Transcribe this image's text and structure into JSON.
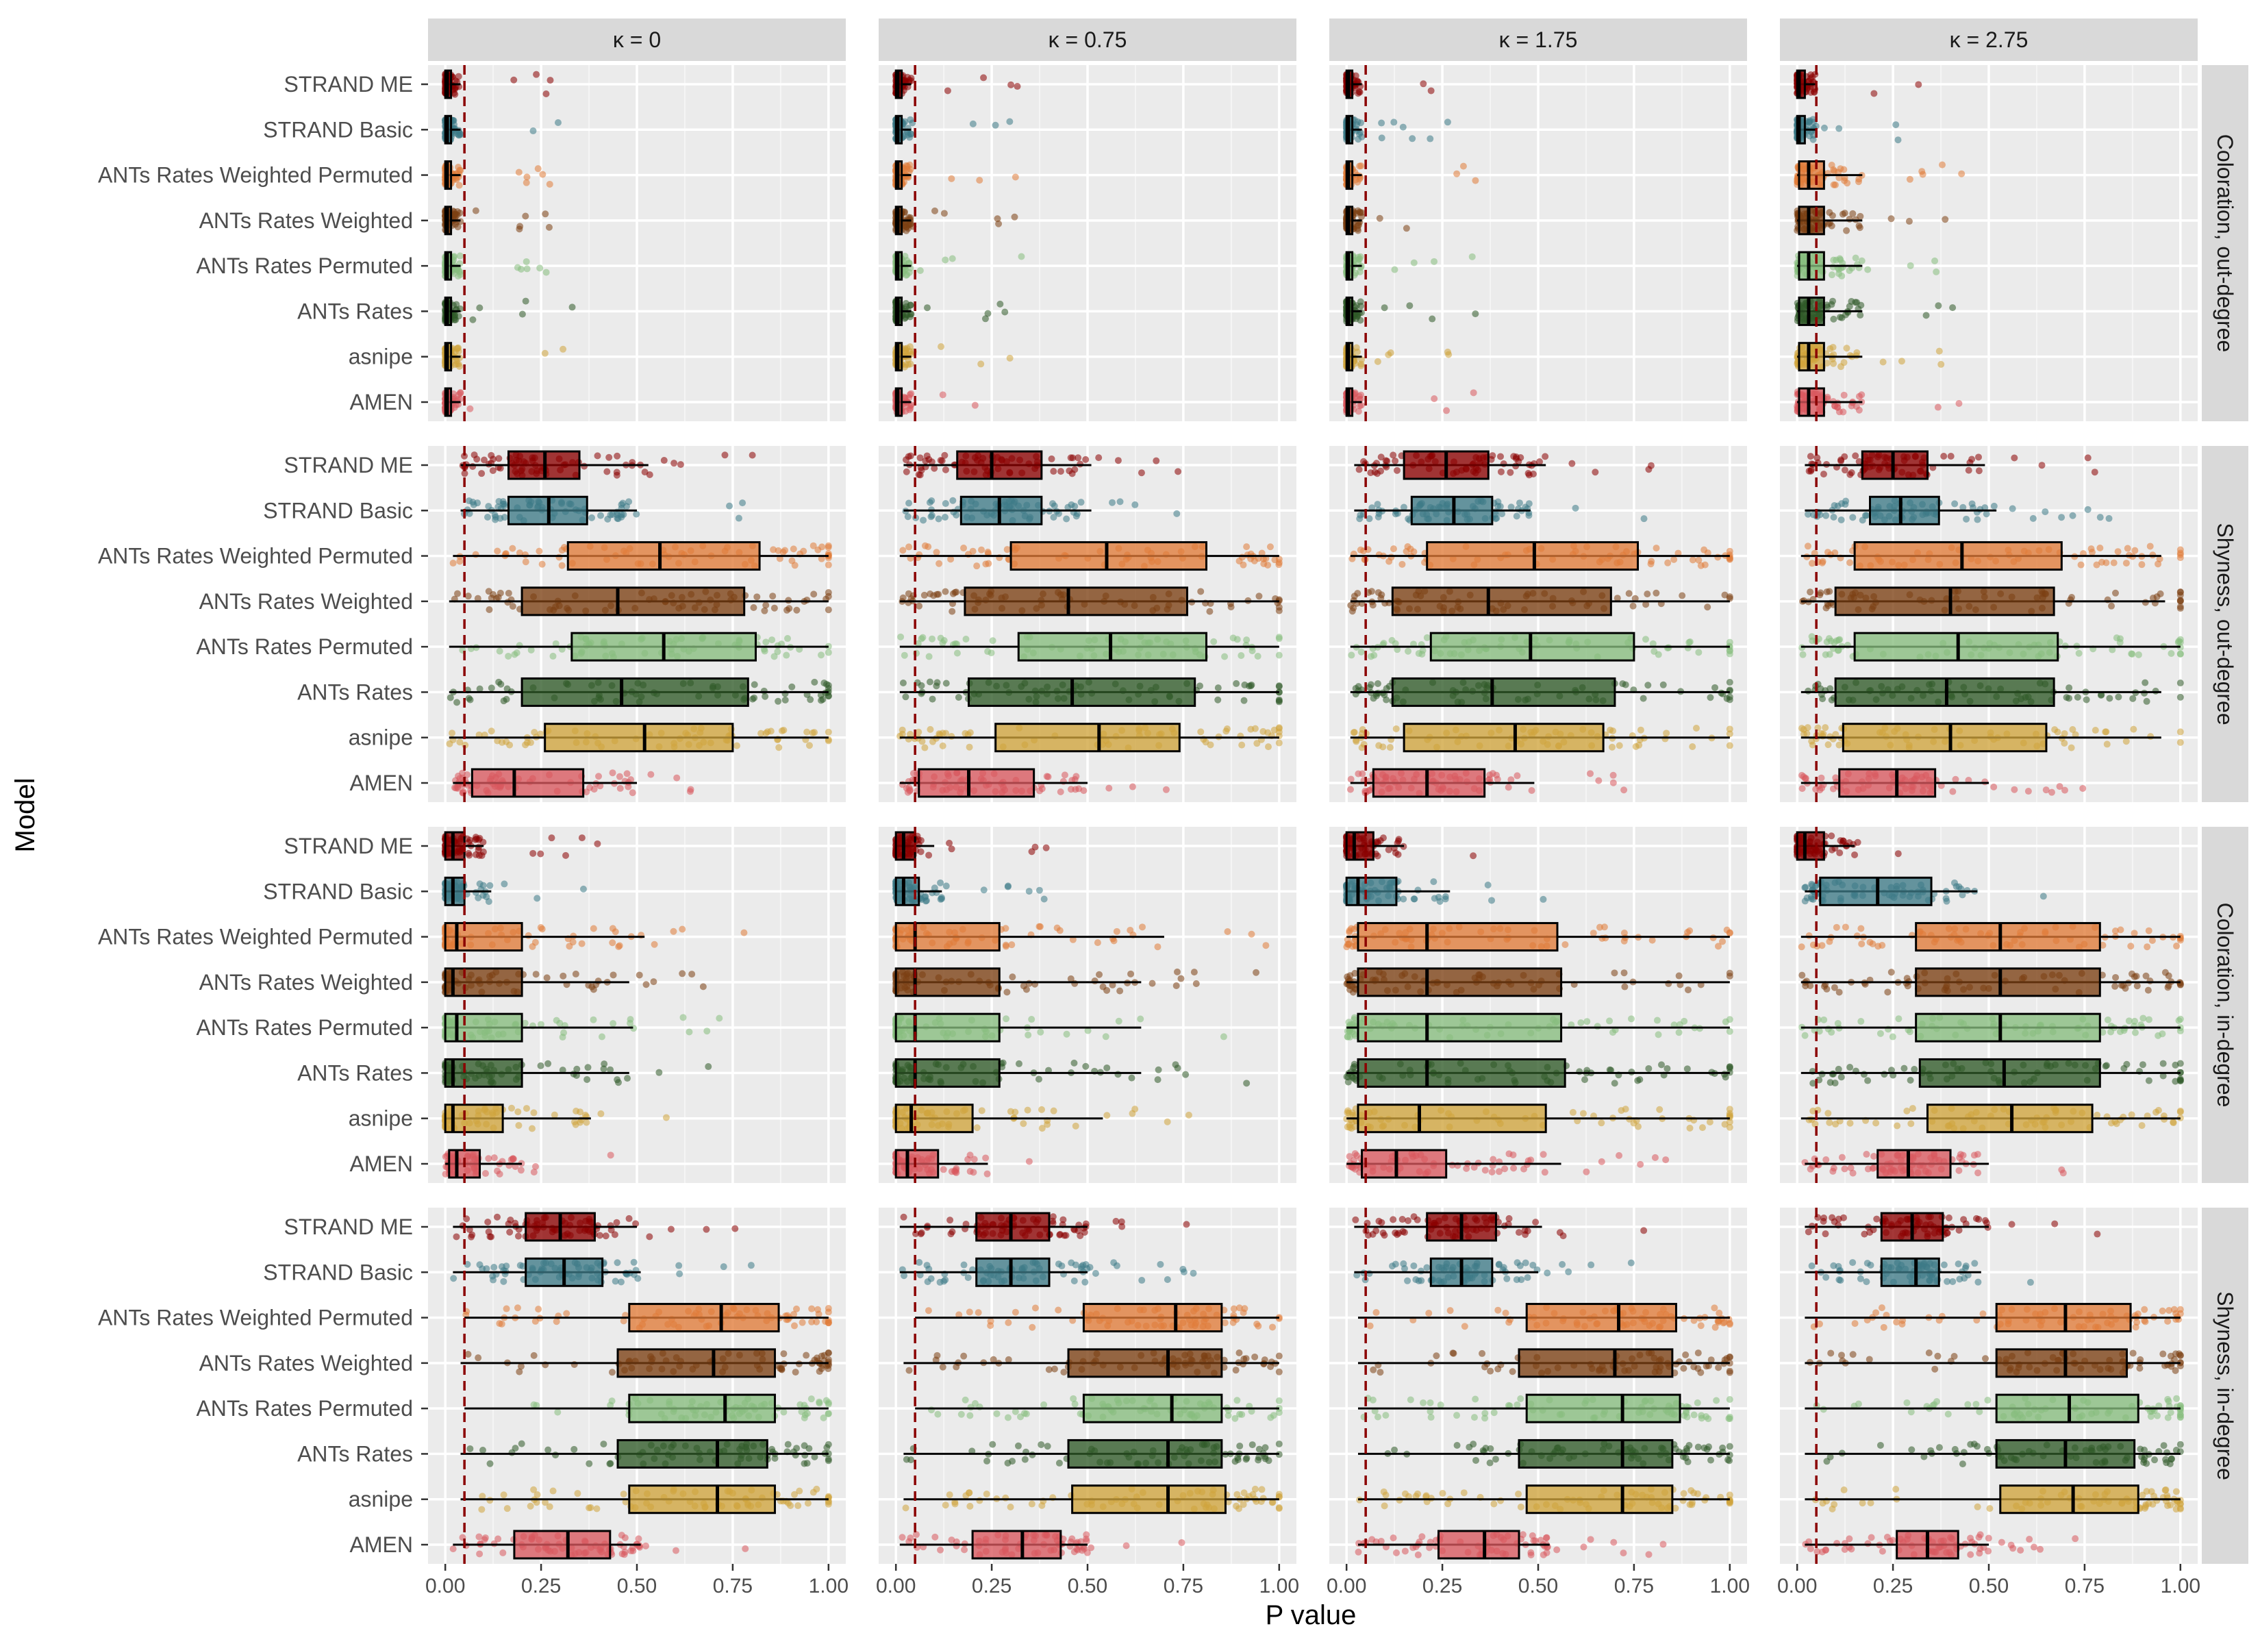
{
  "chart_data": {
    "type": "boxplot",
    "xlabel": "P value",
    "ylabel": "Model",
    "xlim": [
      0,
      1
    ],
    "x_ticks": [
      "0.00",
      "0.25",
      "0.50",
      "0.75",
      "1.00"
    ],
    "x_tick_values": [
      0,
      0.25,
      0.5,
      0.75,
      1.0
    ],
    "reference_line": {
      "x": 0.05,
      "color": "#8b0000",
      "style": "dashed"
    },
    "grid": true,
    "facet_columns": [
      "κ = 0",
      "κ = 0.75",
      "κ = 1.75",
      "κ = 2.75"
    ],
    "facet_rows": [
      "Coloration, out-degree",
      "Shyness, out-degree",
      "Coloration, in-degree",
      "Shyness, in-degree"
    ],
    "models": [
      {
        "name": "STRAND ME",
        "color": "#8b0000"
      },
      {
        "name": "STRAND Basic",
        "color": "#3d7a87"
      },
      {
        "name": "ANTs Rates Weighted Permuted",
        "color": "#e07b39"
      },
      {
        "name": "ANTs Rates Weighted",
        "color": "#7b3f12"
      },
      {
        "name": "ANTs Rates Permuted",
        "color": "#86bd7d"
      },
      {
        "name": "ANTs Rates",
        "color": "#2f5a28"
      },
      {
        "name": "asnipe",
        "color": "#cfa43c"
      },
      {
        "name": "AMEN",
        "color": "#d9575d"
      }
    ],
    "box_stats_order": "[whisker_min, q1, median, q3, whisker_max]",
    "panels": [
      [
        [
          [
            0,
            0,
            0.005,
            0.015,
            0.04
          ],
          [
            0,
            0,
            0.005,
            0.015,
            0.04
          ],
          [
            0,
            0,
            0.005,
            0.015,
            0.04
          ],
          [
            0,
            0,
            0.005,
            0.015,
            0.04
          ],
          [
            0,
            0,
            0.005,
            0.015,
            0.04
          ],
          [
            0,
            0,
            0.005,
            0.015,
            0.04
          ],
          [
            0,
            0,
            0.005,
            0.015,
            0.04
          ],
          [
            0,
            0,
            0.005,
            0.015,
            0.04
          ]
        ],
        [
          [
            0,
            0,
            0.005,
            0.015,
            0.04
          ],
          [
            0,
            0,
            0.005,
            0.015,
            0.04
          ],
          [
            0,
            0,
            0.005,
            0.015,
            0.04
          ],
          [
            0,
            0,
            0.005,
            0.015,
            0.04
          ],
          [
            0,
            0,
            0.005,
            0.015,
            0.04
          ],
          [
            0,
            0,
            0.005,
            0.015,
            0.04
          ],
          [
            0,
            0,
            0.005,
            0.015,
            0.04
          ],
          [
            0,
            0,
            0.005,
            0.015,
            0.04
          ]
        ],
        [
          [
            0,
            0,
            0.005,
            0.015,
            0.04
          ],
          [
            0,
            0,
            0.005,
            0.015,
            0.04
          ],
          [
            0,
            0,
            0.005,
            0.015,
            0.04
          ],
          [
            0,
            0,
            0.005,
            0.015,
            0.04
          ],
          [
            0,
            0,
            0.005,
            0.015,
            0.04
          ],
          [
            0,
            0,
            0.005,
            0.015,
            0.04
          ],
          [
            0,
            0,
            0.005,
            0.015,
            0.04
          ],
          [
            0,
            0,
            0.005,
            0.015,
            0.04
          ]
        ],
        [
          [
            0,
            0,
            0.005,
            0.02,
            0.05
          ],
          [
            0,
            0,
            0.005,
            0.02,
            0.05
          ],
          [
            0,
            0.005,
            0.03,
            0.07,
            0.17
          ],
          [
            0,
            0.005,
            0.03,
            0.07,
            0.17
          ],
          [
            0,
            0.005,
            0.03,
            0.07,
            0.17
          ],
          [
            0,
            0.005,
            0.03,
            0.07,
            0.17
          ],
          [
            0,
            0.005,
            0.03,
            0.07,
            0.17
          ],
          [
            0,
            0.005,
            0.03,
            0.07,
            0.17
          ]
        ]
      ],
      [
        [
          [
            0.04,
            0.165,
            0.26,
            0.35,
            0.53
          ],
          [
            0.04,
            0.165,
            0.27,
            0.37,
            0.5
          ],
          [
            0.02,
            0.32,
            0.56,
            0.82,
            1.0
          ],
          [
            0.01,
            0.2,
            0.45,
            0.78,
            1.0
          ],
          [
            0.01,
            0.33,
            0.57,
            0.81,
            1.0
          ],
          [
            0.01,
            0.2,
            0.46,
            0.79,
            1.0
          ],
          [
            0.01,
            0.26,
            0.52,
            0.75,
            1.0
          ],
          [
            0.02,
            0.07,
            0.18,
            0.36,
            0.5
          ]
        ],
        [
          [
            0.02,
            0.16,
            0.25,
            0.38,
            0.51
          ],
          [
            0.02,
            0.17,
            0.27,
            0.38,
            0.51
          ],
          [
            0.01,
            0.3,
            0.55,
            0.81,
            1.0
          ],
          [
            0.01,
            0.18,
            0.45,
            0.76,
            1.0
          ],
          [
            0.01,
            0.32,
            0.56,
            0.81,
            1.0
          ],
          [
            0.01,
            0.19,
            0.46,
            0.78,
            1.0
          ],
          [
            0.01,
            0.26,
            0.53,
            0.74,
            1.0
          ],
          [
            0.01,
            0.06,
            0.19,
            0.36,
            0.5
          ]
        ],
        [
          [
            0.02,
            0.15,
            0.26,
            0.37,
            0.52
          ],
          [
            0.02,
            0.17,
            0.28,
            0.38,
            0.48
          ],
          [
            0.01,
            0.21,
            0.49,
            0.76,
            1.0
          ],
          [
            0.01,
            0.12,
            0.37,
            0.69,
            1.0
          ],
          [
            0.01,
            0.22,
            0.48,
            0.75,
            1.0
          ],
          [
            0.01,
            0.12,
            0.38,
            0.7,
            1.0
          ],
          [
            0.01,
            0.15,
            0.44,
            0.67,
            1.0
          ],
          [
            0.01,
            0.07,
            0.21,
            0.36,
            0.49
          ]
        ],
        [
          [
            0.02,
            0.17,
            0.25,
            0.34,
            0.49
          ],
          [
            0.02,
            0.19,
            0.27,
            0.37,
            0.52
          ],
          [
            0.01,
            0.15,
            0.43,
            0.69,
            0.95
          ],
          [
            0.01,
            0.1,
            0.4,
            0.67,
            0.96
          ],
          [
            0.01,
            0.15,
            0.42,
            0.68,
            1.0
          ],
          [
            0.01,
            0.1,
            0.39,
            0.67,
            0.95
          ],
          [
            0.01,
            0.12,
            0.4,
            0.65,
            0.95
          ],
          [
            0.01,
            0.11,
            0.26,
            0.36,
            0.5
          ]
        ]
      ],
      [
        [
          [
            0,
            0,
            0.02,
            0.05,
            0.1
          ],
          [
            0,
            0,
            0.02,
            0.05,
            0.12
          ],
          [
            0,
            0,
            0.03,
            0.2,
            0.52
          ],
          [
            0,
            0,
            0.02,
            0.2,
            0.48
          ],
          [
            0,
            0,
            0.03,
            0.2,
            0.49
          ],
          [
            0,
            0,
            0.02,
            0.2,
            0.48
          ],
          [
            0,
            0,
            0.02,
            0.15,
            0.38
          ],
          [
            0,
            0.01,
            0.03,
            0.09,
            0.2
          ]
        ],
        [
          [
            0,
            0,
            0.02,
            0.05,
            0.1
          ],
          [
            0,
            0,
            0.02,
            0.06,
            0.12
          ],
          [
            0,
            0,
            0.05,
            0.27,
            0.7
          ],
          [
            0,
            0,
            0.05,
            0.27,
            0.64
          ],
          [
            0,
            0,
            0.05,
            0.27,
            0.64
          ],
          [
            0,
            0,
            0.05,
            0.27,
            0.64
          ],
          [
            0,
            0,
            0.04,
            0.2,
            0.54
          ],
          [
            0,
            0,
            0.03,
            0.11,
            0.24
          ]
        ],
        [
          [
            0,
            0,
            0.02,
            0.07,
            0.15
          ],
          [
            0,
            0,
            0.03,
            0.13,
            0.27
          ],
          [
            0,
            0.03,
            0.21,
            0.55,
            1.0
          ],
          [
            0,
            0.03,
            0.21,
            0.56,
            1.0
          ],
          [
            0,
            0.03,
            0.21,
            0.56,
            1.0
          ],
          [
            0,
            0.03,
            0.21,
            0.57,
            1.0
          ],
          [
            0,
            0.03,
            0.19,
            0.52,
            1.0
          ],
          [
            0,
            0.04,
            0.13,
            0.26,
            0.56
          ]
        ],
        [
          [
            0,
            0,
            0.02,
            0.07,
            0.15
          ],
          [
            0.02,
            0.06,
            0.21,
            0.35,
            0.47
          ],
          [
            0.01,
            0.31,
            0.53,
            0.79,
            1.0
          ],
          [
            0.01,
            0.31,
            0.53,
            0.79,
            1.0
          ],
          [
            0.01,
            0.31,
            0.53,
            0.79,
            1.0
          ],
          [
            0.01,
            0.32,
            0.54,
            0.79,
            1.0
          ],
          [
            0.01,
            0.34,
            0.56,
            0.77,
            1.0
          ],
          [
            0.02,
            0.21,
            0.29,
            0.4,
            0.5
          ]
        ]
      ],
      [
        [
          [
            0.02,
            0.21,
            0.3,
            0.39,
            0.5
          ],
          [
            0.02,
            0.21,
            0.31,
            0.41,
            0.51
          ],
          [
            0.05,
            0.48,
            0.72,
            0.87,
            1.0
          ],
          [
            0.04,
            0.45,
            0.7,
            0.86,
            1.0
          ],
          [
            0.05,
            0.48,
            0.73,
            0.86,
            1.0
          ],
          [
            0.04,
            0.45,
            0.71,
            0.84,
            1.0
          ],
          [
            0.04,
            0.48,
            0.71,
            0.86,
            1.0
          ],
          [
            0.02,
            0.18,
            0.32,
            0.43,
            0.51
          ]
        ],
        [
          [
            0.01,
            0.21,
            0.3,
            0.4,
            0.5
          ],
          [
            0.01,
            0.21,
            0.3,
            0.4,
            0.5
          ],
          [
            0.05,
            0.49,
            0.73,
            0.85,
            1.0
          ],
          [
            0.02,
            0.45,
            0.71,
            0.85,
            1.0
          ],
          [
            0.05,
            0.49,
            0.72,
            0.85,
            1.0
          ],
          [
            0.02,
            0.45,
            0.71,
            0.85,
            1.0
          ],
          [
            0.02,
            0.46,
            0.71,
            0.86,
            1.0
          ],
          [
            0.01,
            0.2,
            0.33,
            0.43,
            0.5
          ]
        ],
        [
          [
            0.02,
            0.21,
            0.3,
            0.39,
            0.51
          ],
          [
            0.02,
            0.22,
            0.3,
            0.38,
            0.5
          ],
          [
            0.03,
            0.47,
            0.71,
            0.86,
            1.0
          ],
          [
            0.03,
            0.45,
            0.7,
            0.85,
            1.0
          ],
          [
            0.03,
            0.47,
            0.72,
            0.87,
            1.0
          ],
          [
            0.03,
            0.45,
            0.72,
            0.85,
            1.0
          ],
          [
            0.03,
            0.47,
            0.72,
            0.85,
            1.0
          ],
          [
            0.03,
            0.24,
            0.36,
            0.45,
            0.53
          ]
        ],
        [
          [
            0.02,
            0.22,
            0.3,
            0.38,
            0.5
          ],
          [
            0.02,
            0.22,
            0.31,
            0.37,
            0.48
          ],
          [
            0.02,
            0.52,
            0.7,
            0.87,
            1.0
          ],
          [
            0.02,
            0.52,
            0.7,
            0.86,
            1.0
          ],
          [
            0.02,
            0.52,
            0.71,
            0.89,
            1.0
          ],
          [
            0.02,
            0.52,
            0.7,
            0.88,
            1.0
          ],
          [
            0.02,
            0.53,
            0.72,
            0.89,
            1.0
          ],
          [
            0.02,
            0.26,
            0.34,
            0.42,
            0.5
          ]
        ]
      ]
    ]
  }
}
